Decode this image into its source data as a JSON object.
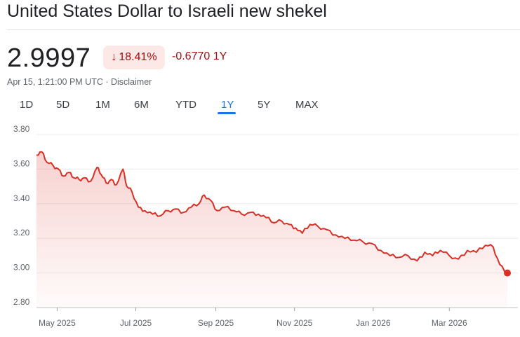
{
  "header": {
    "title": "United States Dollar to Israeli new shekel"
  },
  "quote": {
    "price": "2.9997",
    "change_percent": "18.41%",
    "change_direction_icon": "arrow-down-icon",
    "change_value": "-0.6770 1Y",
    "timestamp": "Apr 15, 1:21:00 PM UTC · Disclaimer"
  },
  "range_tabs": [
    {
      "label": "1D",
      "active": false
    },
    {
      "label": "5D",
      "active": false
    },
    {
      "label": "1M",
      "active": false
    },
    {
      "label": "6M",
      "active": false
    },
    {
      "label": "YTD",
      "active": false
    },
    {
      "label": "1Y",
      "active": true
    },
    {
      "label": "5Y",
      "active": false
    },
    {
      "label": "MAX",
      "active": false
    }
  ],
  "colors": {
    "line": "#d93025",
    "negative_text": "#a50e0e",
    "badge_bg": "#fce8e6",
    "active_tab": "#1a73e8"
  },
  "chart_data": {
    "type": "area",
    "ylim": [
      2.8,
      3.8
    ],
    "y_ticks": [
      "3.80",
      "3.60",
      "3.40",
      "3.20",
      "3.00",
      "2.80"
    ],
    "x_ticks": [
      "May 2025",
      "Jul 2025",
      "Sep 2025",
      "Nov 2025",
      "Jan 2026",
      "Mar 2026"
    ],
    "x_tick_dates": [
      "2025-05-01",
      "2025-07-01",
      "2025-09-01",
      "2025-11-01",
      "2026-01-01",
      "2026-03-01"
    ],
    "start_date": "2025-04-15",
    "end_date": "2026-04-15",
    "grid": true,
    "legend": "none",
    "series": [
      {
        "values": [
          [
            "2025-04-15",
            3.68
          ],
          [
            "2025-04-19",
            3.7
          ],
          [
            "2025-04-23",
            3.64
          ],
          [
            "2025-04-28",
            3.62
          ],
          [
            "2025-05-02",
            3.6
          ],
          [
            "2025-05-06",
            3.56
          ],
          [
            "2025-05-10",
            3.58
          ],
          [
            "2025-05-14",
            3.55
          ],
          [
            "2025-05-18",
            3.54
          ],
          [
            "2025-05-22",
            3.55
          ],
          [
            "2025-05-27",
            3.53
          ],
          [
            "2025-06-01",
            3.61
          ],
          [
            "2025-06-04",
            3.57
          ],
          [
            "2025-06-08",
            3.52
          ],
          [
            "2025-06-12",
            3.54
          ],
          [
            "2025-06-16",
            3.51
          ],
          [
            "2025-06-21",
            3.6
          ],
          [
            "2025-06-24",
            3.5
          ],
          [
            "2025-06-28",
            3.47
          ],
          [
            "2025-07-03",
            3.38
          ],
          [
            "2025-07-08",
            3.36
          ],
          [
            "2025-07-14",
            3.34
          ],
          [
            "2025-07-20",
            3.33
          ],
          [
            "2025-07-26",
            3.36
          ],
          [
            "2025-08-01",
            3.37
          ],
          [
            "2025-08-07",
            3.35
          ],
          [
            "2025-08-13",
            3.38
          ],
          [
            "2025-08-19",
            3.4
          ],
          [
            "2025-08-23",
            3.45
          ],
          [
            "2025-08-28",
            3.42
          ],
          [
            "2025-09-02",
            3.36
          ],
          [
            "2025-09-08",
            3.38
          ],
          [
            "2025-09-15",
            3.36
          ],
          [
            "2025-09-21",
            3.34
          ],
          [
            "2025-09-28",
            3.35
          ],
          [
            "2025-10-04",
            3.34
          ],
          [
            "2025-10-10",
            3.32
          ],
          [
            "2025-10-16",
            3.29
          ],
          [
            "2025-10-22",
            3.3
          ],
          [
            "2025-10-28",
            3.28
          ],
          [
            "2025-11-02",
            3.26
          ],
          [
            "2025-11-07",
            3.23
          ],
          [
            "2025-11-13",
            3.28
          ],
          [
            "2025-11-19",
            3.27
          ],
          [
            "2025-11-26",
            3.25
          ],
          [
            "2025-12-03",
            3.22
          ],
          [
            "2025-12-10",
            3.2
          ],
          [
            "2025-12-17",
            3.19
          ],
          [
            "2025-12-24",
            3.18
          ],
          [
            "2025-12-31",
            3.17
          ],
          [
            "2026-01-07",
            3.13
          ],
          [
            "2026-01-14",
            3.1
          ],
          [
            "2026-01-21",
            3.09
          ],
          [
            "2026-01-28",
            3.1
          ],
          [
            "2026-02-04",
            3.07
          ],
          [
            "2026-02-10",
            3.12
          ],
          [
            "2026-02-16",
            3.1
          ],
          [
            "2026-02-22",
            3.13
          ],
          [
            "2026-03-01",
            3.1
          ],
          [
            "2026-03-08",
            3.08
          ],
          [
            "2026-03-15",
            3.13
          ],
          [
            "2026-03-22",
            3.12
          ],
          [
            "2026-03-29",
            3.16
          ],
          [
            "2026-04-04",
            3.15
          ],
          [
            "2026-04-09",
            3.05
          ],
          [
            "2026-04-15",
            3.0
          ]
        ]
      }
    ]
  }
}
